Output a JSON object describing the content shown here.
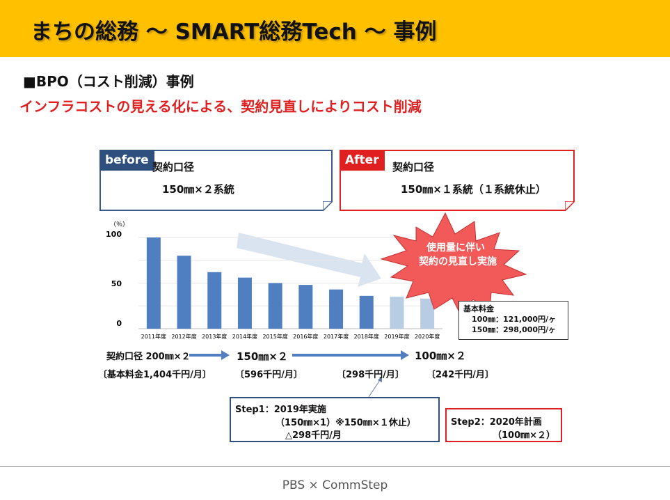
{
  "banner": {
    "title": "まちの総務 〜 SMART総務Tech 〜 事例",
    "color": "#FFC000"
  },
  "section": {
    "heading": "■BPO（コスト削減）事例",
    "subheading": "インフラコストの見える化による、契約見直しによりコスト削減"
  },
  "before_card": {
    "tag": "before",
    "label": "契約口径",
    "value": "150㎜×２系統"
  },
  "after_card": {
    "tag": "After",
    "label": "契約口径",
    "value": "150㎜×１系統（１系統休止）"
  },
  "burst": {
    "line1": "使用量に伴い",
    "line2": "契約の見直し実施"
  },
  "price_box": {
    "title": "基本料金",
    "line1": "100㎜：121,000円/ヶ",
    "line2": "150㎜：298,000円/ヶ"
  },
  "timeline": {
    "start": "契約口径 200㎜×２",
    "mid": "150㎜×２",
    "end": "100㎜×２",
    "cost1": "〔基本料金1,404千円/月〕",
    "cost2": "〔596千円/月〕",
    "cost3": "〔298千円/月〕",
    "cost4": "〔242千円/月〕"
  },
  "step1": {
    "title": "Step1：2019年実施",
    "line1": "（150㎜×1）※150㎜×１休止）",
    "line2": "△298千円/月"
  },
  "step2": {
    "title": "Step2：2020年計画",
    "line1": "（100㎜×２）"
  },
  "footer": {
    "text": "PBS × CommStep"
  },
  "colors": {
    "bar": "#4F7FC0",
    "bar_light": "#B8CCE4",
    "red": "#E02020",
    "navy": "#2F4F7F"
  },
  "chart_data": {
    "type": "bar",
    "unit_label": "（％）",
    "categories": [
      "2011年度",
      "2012年度",
      "2013年度",
      "2014年度",
      "2015年度",
      "2016年度",
      "2017年度",
      "2018年度",
      "2019年度",
      "2020年度"
    ],
    "values": [
      100,
      80,
      62,
      56,
      50,
      48,
      43,
      36,
      35,
      33
    ],
    "yticks": [
      "0",
      "50",
      "100"
    ],
    "ylim": [
      0,
      100
    ]
  }
}
